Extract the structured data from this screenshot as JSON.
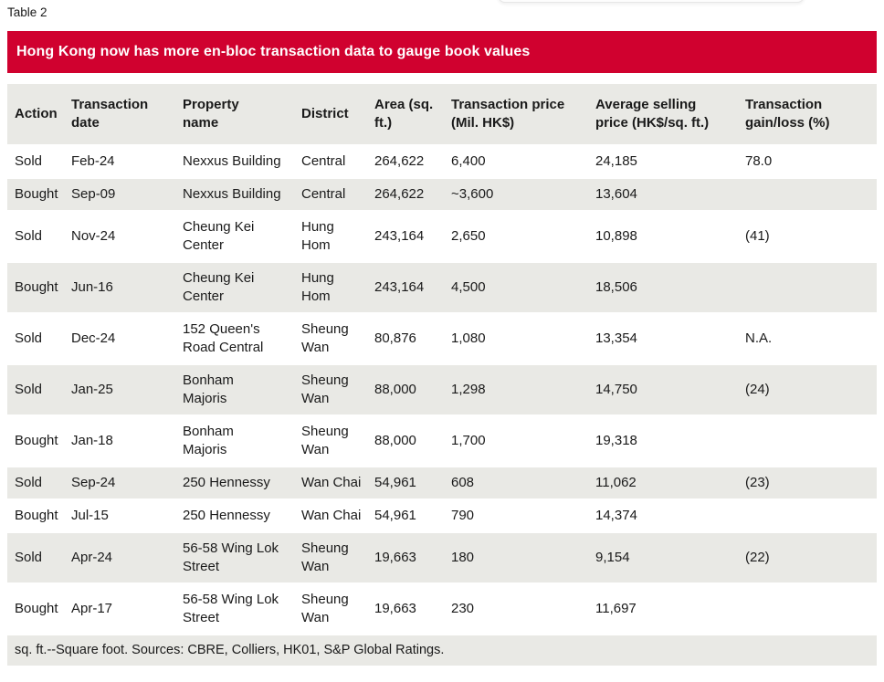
{
  "label": "Table 2",
  "title": "Hong Kong now has more en-bloc transaction data to gauge book values",
  "colors": {
    "accent_red": "#D0012F",
    "row_stripe": "#E9E9E5",
    "text_dark": "#1A1A1A"
  },
  "table": {
    "headers": [
      "Action",
      "Transaction\ndate",
      "Property\nname",
      "District",
      "Area (sq.\nft.)",
      "Transaction price\n(Mil. HK$)",
      "Average selling\nprice (HK$/sq. ft.)",
      "Transaction\ngain/loss (%)"
    ],
    "rows": [
      {
        "action": "Sold",
        "date": "Feb-24",
        "property": "Nexxus Building",
        "district": "Central",
        "area": "264,622",
        "price": "6,400",
        "avg_price": "24,185",
        "gain": "78.0"
      },
      {
        "action": "Bought",
        "date": "Sep-09",
        "property": "Nexxus Building",
        "district": "Central",
        "area": "264,622",
        "price": "~3,600",
        "avg_price": "13,604",
        "gain": ""
      },
      {
        "action": "Sold",
        "date": "Nov-24",
        "property": "Cheung Kei\nCenter",
        "district": "Hung\nHom",
        "area": "243,164",
        "price": "2,650",
        "avg_price": "10,898",
        "gain": "(41)"
      },
      {
        "action": "Bought",
        "date": "Jun-16",
        "property": "Cheung Kei\nCenter",
        "district": "Hung\nHom",
        "area": "243,164",
        "price": "4,500",
        "avg_price": "18,506",
        "gain": ""
      },
      {
        "action": "Sold",
        "date": "Dec-24",
        "property": "152 Queen's\nRoad Central",
        "district": "Sheung\nWan",
        "area": "80,876",
        "price": "1,080",
        "avg_price": "13,354",
        "gain": "N.A."
      },
      {
        "action": "Sold",
        "date": "Jan-25",
        "property": "Bonham\nMajoris",
        "district": "Sheung\nWan",
        "area": "88,000",
        "price": "1,298",
        "avg_price": "14,750",
        "gain": "(24)"
      },
      {
        "action": "Bought",
        "date": "Jan-18",
        "property": "Bonham\nMajoris",
        "district": "Sheung\nWan",
        "area": "88,000",
        "price": "1,700",
        "avg_price": "19,318",
        "gain": ""
      },
      {
        "action": "Sold",
        "date": "Sep-24",
        "property": "250 Hennessy",
        "district": "Wan Chai",
        "area": "54,961",
        "price": "608",
        "avg_price": "11,062",
        "gain": "(23)"
      },
      {
        "action": "Bought",
        "date": "Jul-15",
        "property": "250 Hennessy",
        "district": "Wan Chai",
        "area": "54,961",
        "price": "790",
        "avg_price": "14,374",
        "gain": ""
      },
      {
        "action": "Sold",
        "date": "Apr-24",
        "property": "56-58 Wing Lok\nStreet",
        "district": "Sheung\nWan",
        "area": "19,663",
        "price": "180",
        "avg_price": "9,154",
        "gain": "(22)"
      },
      {
        "action": "Bought",
        "date": "Apr-17",
        "property": "56-58 Wing Lok\nStreet",
        "district": "Sheung\nWan",
        "area": "19,663",
        "price": "230",
        "avg_price": "11,697",
        "gain": ""
      }
    ],
    "footnote": "sq. ft.--Square foot. Sources: CBRE, Colliers, HK01, S&P Global Ratings."
  }
}
